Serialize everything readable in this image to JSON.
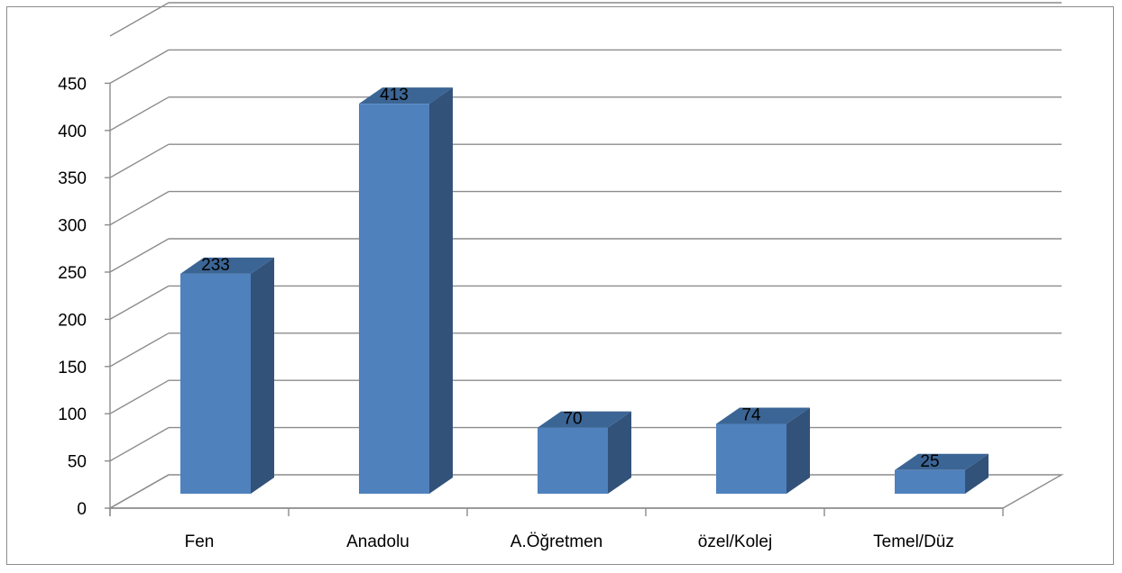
{
  "chart_data": {
    "type": "bar",
    "style": "3d-column",
    "categories": [
      "Fen",
      "Anadolu",
      "A.Öğretmen",
      "özel/Kolej",
      "Temel/Düz"
    ],
    "values": [
      233,
      413,
      70,
      74,
      25
    ],
    "data_labels": [
      "233",
      "413",
      "70",
      "74",
      "25"
    ],
    "y_ticks": [
      "0",
      "50",
      "100",
      "150",
      "200",
      "250",
      "300",
      "350",
      "400",
      "450"
    ],
    "ylim": [
      0,
      500
    ],
    "ytick_step": 50,
    "grid": true,
    "legend": "none",
    "colors": {
      "bar_front": "#4f81bd",
      "bar_side": "#33527a",
      "bar_top": "#3b6594",
      "gridline": "#8c8c8c",
      "axis": "#8c8c8c",
      "border": "#8c8c8c"
    }
  }
}
